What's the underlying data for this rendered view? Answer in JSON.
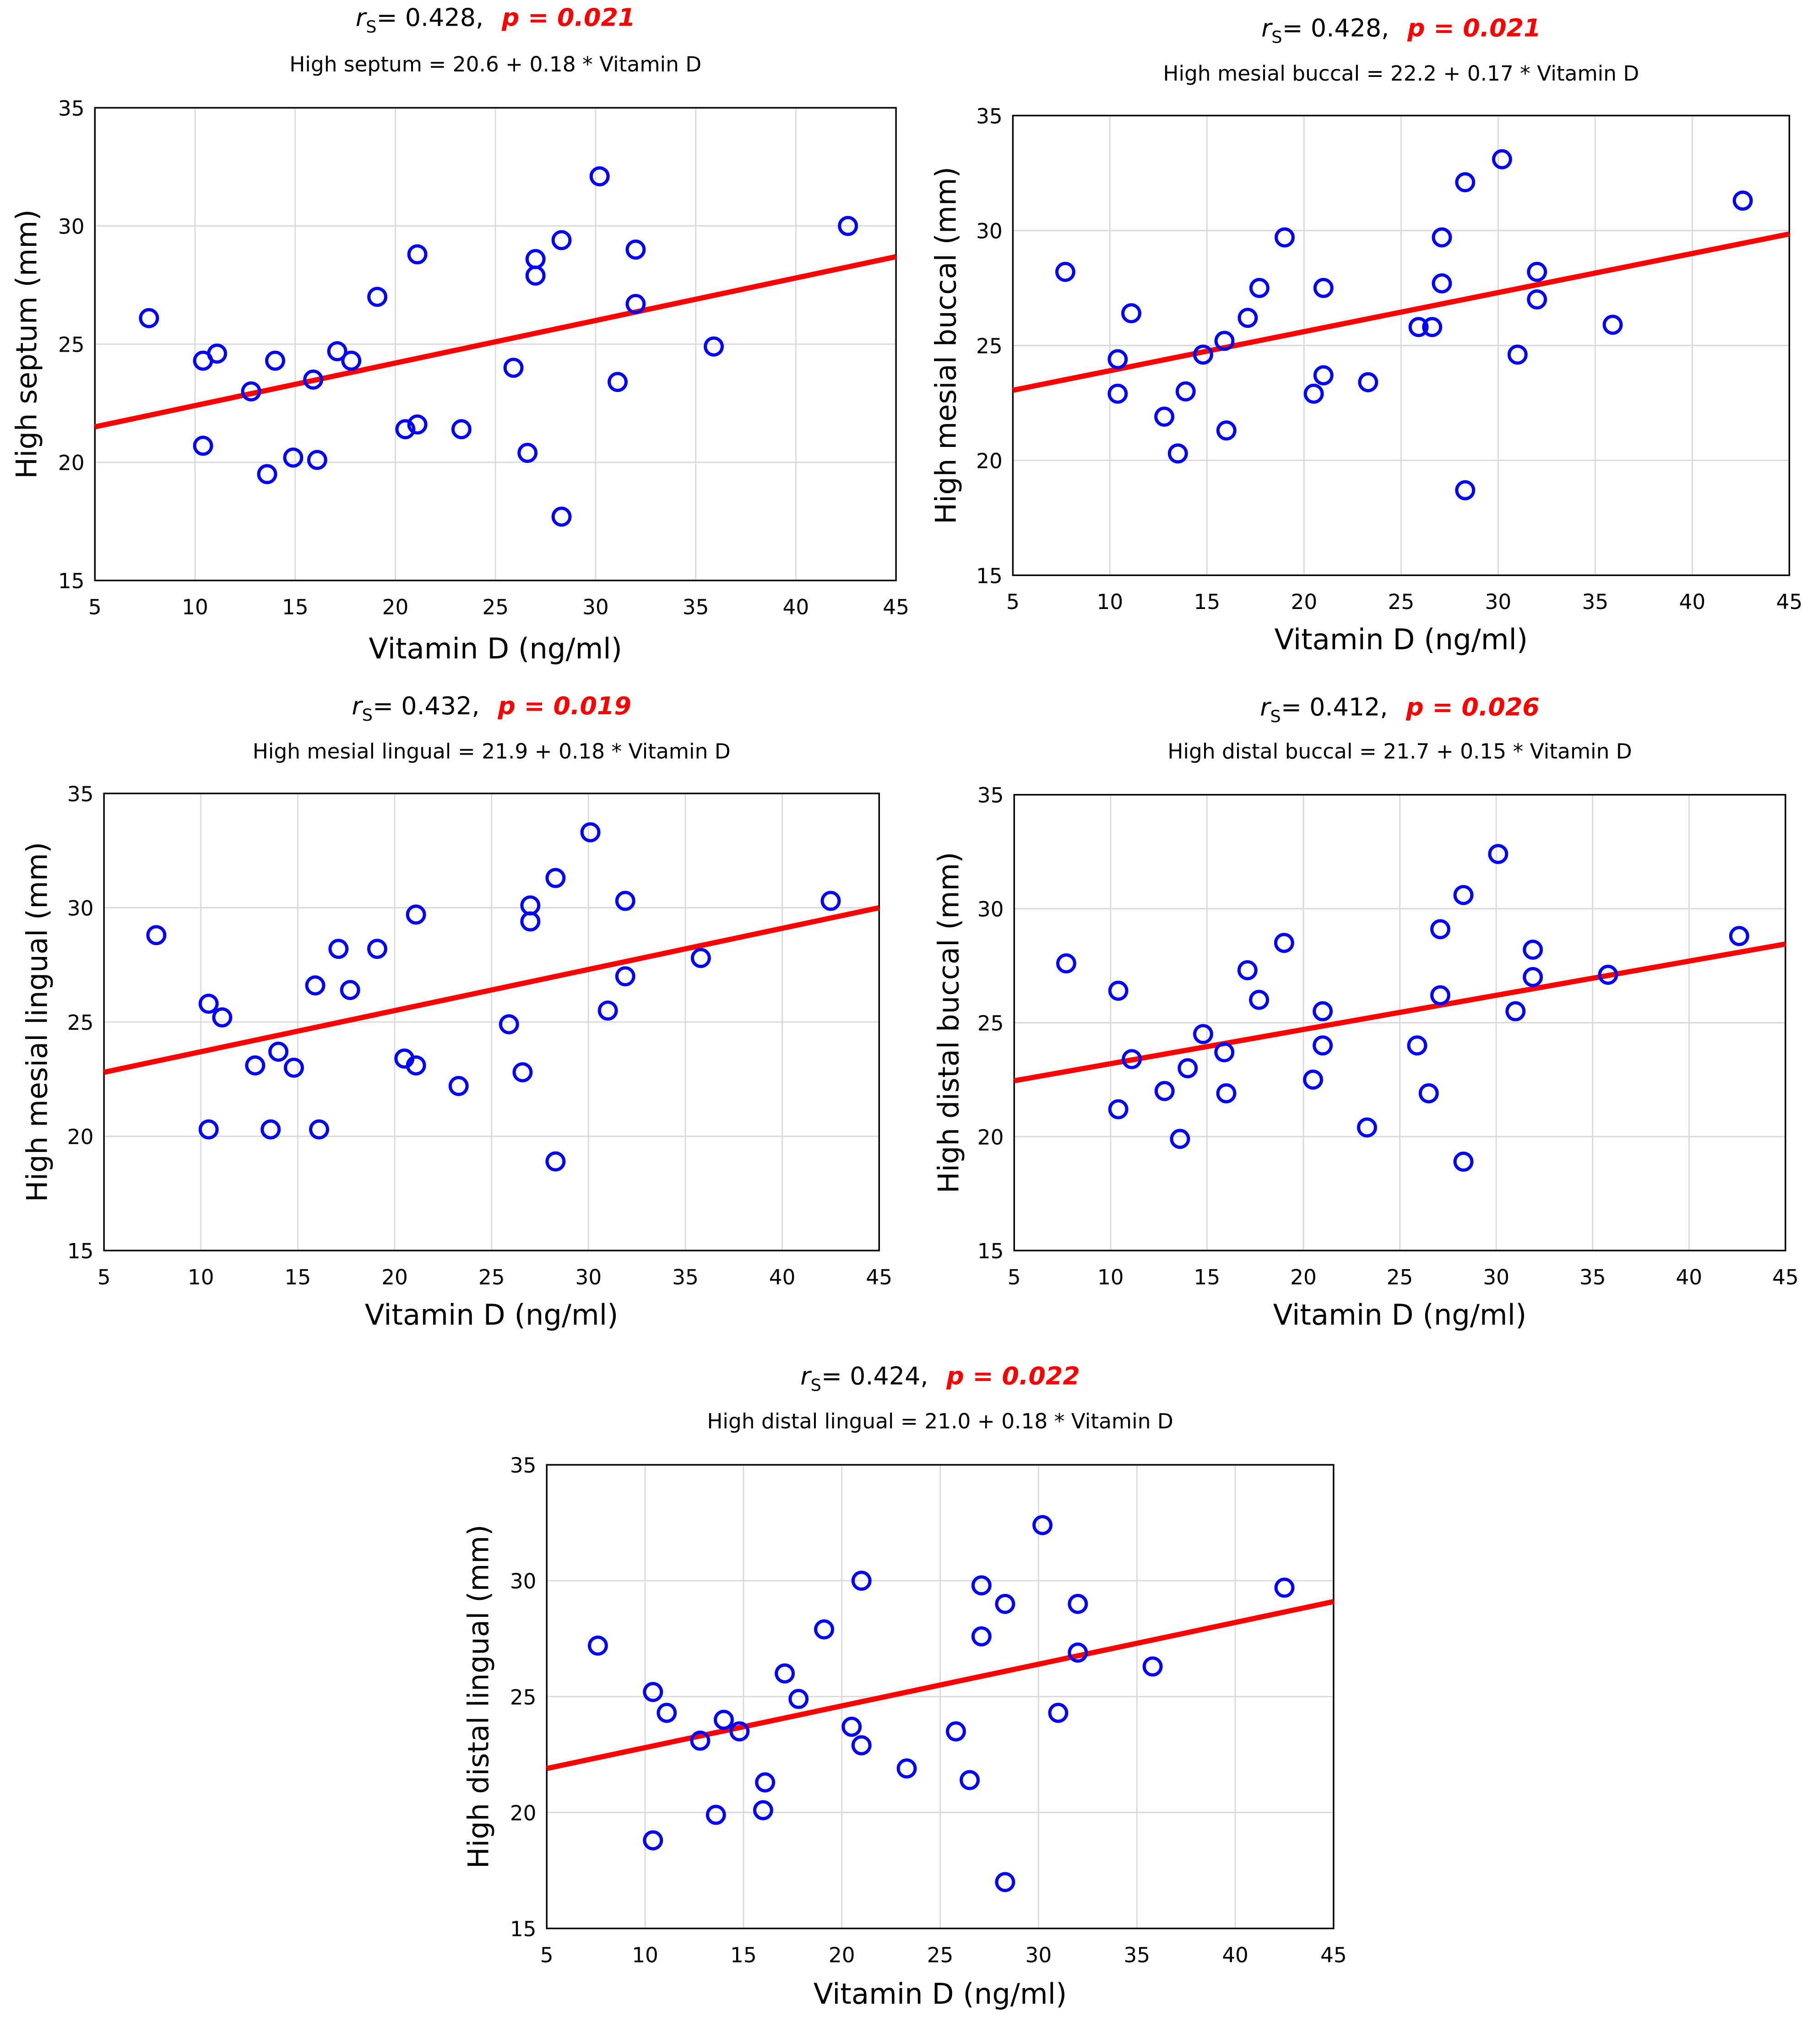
{
  "chart_data": [
    {
      "type": "scatter",
      "rs_symbol": "r",
      "rs_sub": "S",
      "rs_value": "= 0.428,",
      "p_label": "p = 0.021",
      "subtitle": "High septum = 20.6 + 0.18 * Vitamin D",
      "xlabel": "Vitamin D (ng/ml)",
      "ylabel": "High septum (mm)",
      "xlim": [
        5,
        45
      ],
      "ylim": [
        15,
        35
      ],
      "xticks": [
        5,
        10,
        15,
        20,
        25,
        30,
        35,
        40,
        45
      ],
      "yticks": [
        15,
        20,
        25,
        30,
        35
      ],
      "fit": {
        "intercept": 20.6,
        "slope": 0.18
      },
      "x": [
        7.7,
        10.4,
        11.1,
        10.4,
        12.8,
        13.6,
        14.0,
        14.9,
        15.9,
        16.1,
        17.1,
        17.8,
        19.1,
        20.5,
        21.1,
        21.1,
        23.3,
        25.9,
        26.6,
        27.0,
        27.0,
        28.3,
        28.3,
        30.2,
        31.1,
        32.0,
        32.0,
        35.9,
        42.6
      ],
      "y": [
        26.1,
        24.3,
        24.6,
        20.7,
        23.0,
        19.5,
        24.3,
        20.2,
        23.5,
        20.1,
        24.7,
        24.3,
        27.0,
        21.4,
        28.8,
        21.6,
        21.4,
        24.0,
        20.4,
        28.6,
        27.9,
        29.4,
        17.7,
        32.1,
        23.4,
        29.0,
        26.7,
        24.9,
        30.0
      ]
    },
    {
      "type": "scatter",
      "rs_symbol": "r",
      "rs_sub": "S",
      "rs_value": "= 0.428,",
      "p_label": "p = 0.021",
      "subtitle": "High mesial buccal = 22.2 + 0.17 * Vitamin D",
      "xlabel": "Vitamin D (ng/ml)",
      "ylabel": "High mesial buccal (mm)",
      "xlim": [
        5,
        45
      ],
      "ylim": [
        15,
        35
      ],
      "xticks": [
        5,
        10,
        15,
        20,
        25,
        30,
        35,
        40,
        45
      ],
      "yticks": [
        15,
        20,
        25,
        30,
        35
      ],
      "fit": {
        "intercept": 22.2,
        "slope": 0.17
      },
      "x": [
        7.7,
        10.4,
        10.4,
        11.1,
        12.8,
        13.5,
        13.9,
        14.8,
        15.9,
        16.0,
        17.1,
        17.7,
        19.0,
        20.5,
        21.0,
        21.0,
        23.3,
        25.9,
        26.6,
        27.1,
        27.1,
        28.3,
        28.3,
        30.2,
        31.0,
        32.0,
        32.0,
        35.9,
        42.6
      ],
      "y": [
        28.2,
        24.4,
        22.9,
        26.4,
        21.9,
        20.3,
        23.0,
        24.6,
        25.2,
        21.3,
        26.2,
        27.5,
        29.7,
        22.9,
        27.5,
        23.7,
        23.4,
        25.8,
        25.8,
        29.7,
        27.7,
        32.1,
        18.7,
        33.1,
        24.6,
        28.2,
        27.0,
        25.9,
        31.3
      ]
    },
    {
      "type": "scatter",
      "rs_symbol": "r",
      "rs_sub": "S",
      "rs_value": "= 0.432,",
      "p_label": "p = 0.019",
      "subtitle": "High mesial lingual = 21.9 + 0.18 * Vitamin D",
      "xlabel": "Vitamin D (ng/ml)",
      "ylabel": "High mesial lingual (mm)",
      "xlim": [
        5,
        45
      ],
      "ylim": [
        15,
        35
      ],
      "xticks": [
        5,
        10,
        15,
        20,
        25,
        30,
        35,
        40,
        45
      ],
      "yticks": [
        15,
        20,
        25,
        30,
        35
      ],
      "fit": {
        "intercept": 21.9,
        "slope": 0.18
      },
      "x": [
        7.7,
        10.4,
        11.1,
        10.4,
        12.8,
        13.6,
        14.0,
        14.8,
        15.9,
        16.1,
        17.1,
        17.7,
        19.1,
        20.5,
        21.1,
        21.1,
        23.3,
        25.9,
        26.6,
        27.0,
        27.0,
        28.3,
        28.3,
        30.1,
        31.0,
        31.9,
        31.9,
        35.8,
        42.5
      ],
      "y": [
        28.8,
        25.8,
        25.2,
        20.3,
        23.1,
        20.3,
        23.7,
        23.0,
        26.6,
        20.3,
        28.2,
        26.4,
        28.2,
        23.4,
        29.7,
        23.1,
        22.2,
        24.9,
        22.8,
        30.1,
        29.4,
        31.3,
        18.9,
        33.3,
        25.5,
        30.3,
        27.0,
        27.8,
        30.3
      ]
    },
    {
      "type": "scatter",
      "rs_symbol": "r",
      "rs_sub": "S",
      "rs_value": "= 0.412,",
      "p_label": "p = 0.026",
      "subtitle": "High distal buccal = 21.7 + 0.15 * Vitamin D",
      "xlabel": "Vitamin D (ng/ml)",
      "ylabel": "High distal buccal (mm)",
      "xlim": [
        5,
        45
      ],
      "ylim": [
        15,
        35
      ],
      "xticks": [
        5,
        10,
        15,
        20,
        25,
        30,
        35,
        40,
        45
      ],
      "yticks": [
        15,
        20,
        25,
        30,
        35
      ],
      "fit": {
        "intercept": 21.7,
        "slope": 0.15
      },
      "x": [
        7.7,
        10.4,
        11.1,
        10.4,
        12.8,
        13.6,
        14.0,
        14.8,
        15.9,
        16.0,
        17.1,
        17.7,
        19.0,
        20.5,
        21.0,
        21.0,
        23.3,
        25.9,
        26.5,
        27.1,
        27.1,
        28.3,
        28.3,
        30.1,
        31.0,
        31.9,
        31.9,
        35.8,
        42.6
      ],
      "y": [
        27.6,
        26.4,
        23.4,
        21.2,
        22.0,
        19.9,
        23.0,
        24.5,
        23.7,
        21.9,
        27.3,
        26.0,
        28.5,
        22.5,
        25.5,
        24.0,
        20.4,
        24.0,
        21.9,
        29.1,
        26.2,
        30.6,
        18.9,
        32.4,
        25.5,
        28.2,
        27.0,
        27.1,
        28.8
      ]
    },
    {
      "type": "scatter",
      "rs_symbol": "r",
      "rs_sub": "S",
      "rs_value": "= 0.424,",
      "p_label": "p = 0.022",
      "subtitle": "High distal lingual = 21.0 + 0.18 * Vitamin D",
      "xlabel": "Vitamin D (ng/ml)",
      "ylabel": "High distal lingual (mm)",
      "xlim": [
        5,
        45
      ],
      "ylim": [
        15,
        35
      ],
      "xticks": [
        5,
        10,
        15,
        20,
        25,
        30,
        35,
        40,
        45
      ],
      "yticks": [
        15,
        20,
        25,
        30,
        35
      ],
      "fit": {
        "intercept": 21.0,
        "slope": 0.18
      },
      "x": [
        7.6,
        10.4,
        11.1,
        10.4,
        12.8,
        13.6,
        14.0,
        14.8,
        16.1,
        16.0,
        17.1,
        17.8,
        19.1,
        20.5,
        21.0,
        21.0,
        23.3,
        25.8,
        26.5,
        27.1,
        27.1,
        28.3,
        28.3,
        30.2,
        31.0,
        32.0,
        32.0,
        35.8,
        42.5
      ],
      "y": [
        27.2,
        25.2,
        24.3,
        18.8,
        23.1,
        19.9,
        24.0,
        23.5,
        21.3,
        20.1,
        26.0,
        24.9,
        27.9,
        23.7,
        30.0,
        22.9,
        21.9,
        23.5,
        21.4,
        29.8,
        27.6,
        29.0,
        17.0,
        32.4,
        24.3,
        29.0,
        26.9,
        26.3,
        29.7
      ]
    }
  ],
  "colors": {
    "marker": "#0000ff",
    "fit_line": "#ff0000",
    "p_value": "#ff0000",
    "grid": "#d9d9d9"
  }
}
